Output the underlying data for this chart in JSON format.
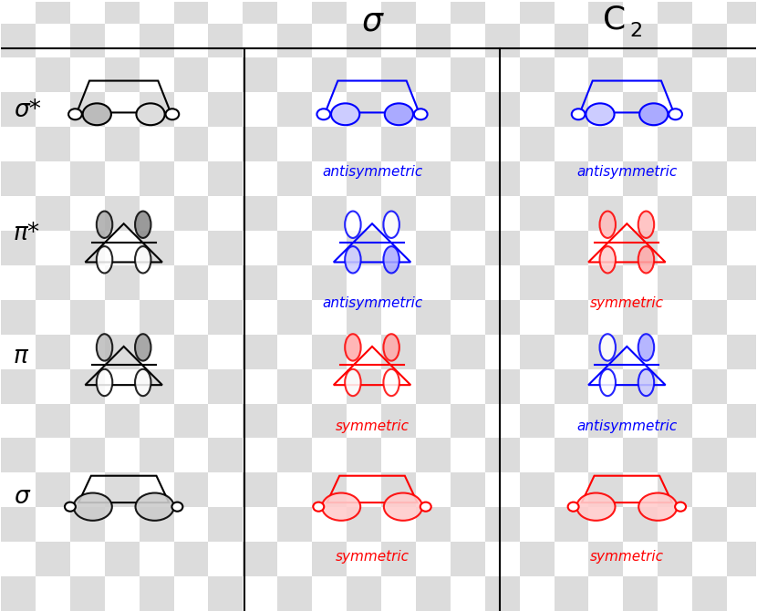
{
  "symmetry_labels": [
    [
      "antisymmetric",
      "antisymmetric"
    ],
    [
      "antisymmetric",
      "symmetric"
    ],
    [
      "symmetric",
      "antisymmetric"
    ],
    [
      "symmetric",
      "symmetric"
    ]
  ],
  "row_labels": [
    "σ*",
    "π*",
    "π",
    "σ"
  ],
  "col_header_sigma": "σ",
  "col_header_C": "C",
  "col_header_2": "2",
  "blue": "#0000FF",
  "red": "#FF0000",
  "black": "#000000",
  "bg_light": "#DCDCDC",
  "bg_white": "#FFFFFF",
  "checker_size": 38
}
